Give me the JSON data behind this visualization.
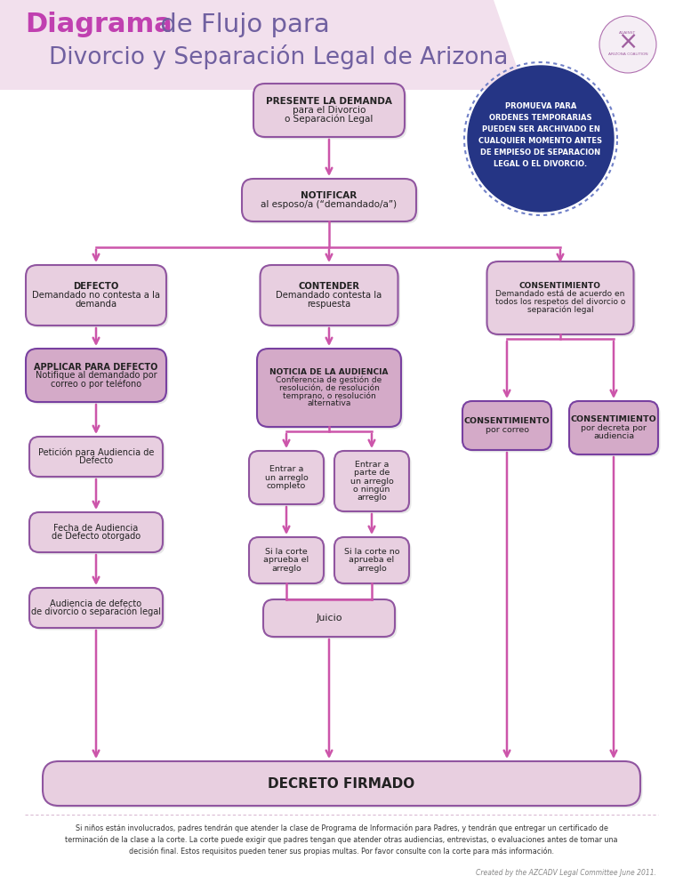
{
  "bg_color": "#ffffff",
  "header_bg": "#f2e0ed",
  "box_light_fill": "#e8cfe0",
  "box_dark_fill": "#d4aac8",
  "box_stroke_light": "#9055a0",
  "box_stroke_dark": "#7840a0",
  "arrow_color": "#cc55aa",
  "circle_fill": "#253585",
  "title_bold_color": "#c040b0",
  "title_regular_color": "#7060a0",
  "decreto_fill": "#e8cfe0",
  "decreto_stroke": "#9055a0",
  "footer_text": "Si niños están involucrados, padres tendrán que atender la clase de Programa de Información para Padres, y tendrán que entregar un certificado de\nterminación de la clase a la corte. La corte puede exigir que padres tengan que atender otras audiencias, entrevistas, o evaluaciones antes de tomar una\ndecisión final. Estos requisitos pueden tener sus propias multas. Por favor consulte con la corte para más información.",
  "credit_text": "Created by the AZCADV Legal Committee June 2011.",
  "promo_text": "PROMUEVA PARA\nORDENES TEMPORARIAS\nPUEDEN SER ARCHIVADO EN\nCUALQUIER MOMENTO ANTES\nDE EMPIESO DE SEPARACION\nLEGAL O EL DIVORCIO."
}
